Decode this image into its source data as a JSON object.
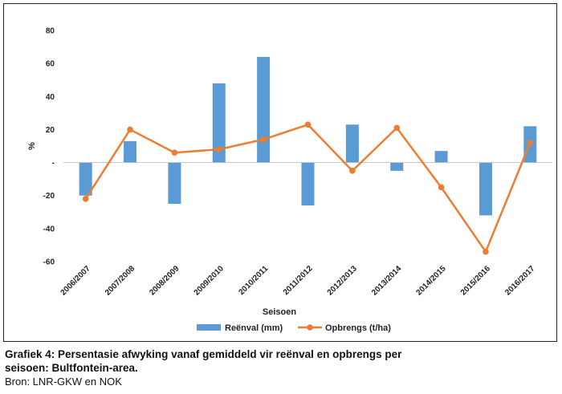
{
  "chart_data": {
    "type": "bar+line",
    "categories": [
      "2006/2007",
      "2007/2008",
      "2008/2009",
      "2009/2010",
      "2010/2011",
      "2011/2012",
      "2012/2013",
      "2013/2014",
      "2014/2015",
      "2015/2016",
      "2016/2017"
    ],
    "series": [
      {
        "name": "Reënval (mm)",
        "kind": "bar",
        "color": "#5b9bd5",
        "values": [
          -20,
          13,
          -25,
          48,
          64,
          -26,
          23,
          -5,
          7,
          -32,
          22
        ]
      },
      {
        "name": "Opbrengs (t/ha)",
        "kind": "line",
        "color": "#ed7d31",
        "values": [
          -22,
          20,
          6,
          8,
          14,
          23,
          -5,
          21,
          -15,
          -54,
          12
        ]
      }
    ],
    "ylim": [
      -60,
      80
    ],
    "yticks": [
      80,
      60,
      40,
      20,
      0,
      -20,
      -40,
      -60
    ],
    "ytick_labels": [
      "80",
      "60",
      "40",
      "20",
      "-",
      "-20",
      "-40",
      "-60"
    ],
    "ylabel": "%",
    "xlabel": "Seisoen",
    "legend_position": "bottom",
    "grid": false
  },
  "caption": {
    "title": "Grafiek 4: Persentasie afwyking vanaf gemiddeld vir reënval en opbrengs per seisoen: Bultfontein-area.",
    "source": "Bron: LNR-GKW en NOK"
  }
}
